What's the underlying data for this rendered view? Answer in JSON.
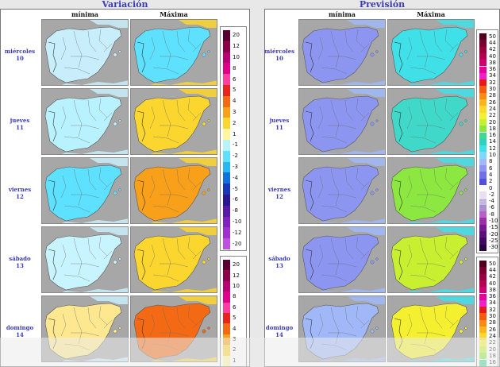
{
  "variacion": {
    "title": "Variación",
    "col_min": "mínima",
    "col_max": "Máxima"
  },
  "prevision": {
    "title": "Previsión",
    "col_min": "mínima",
    "col_max": "Máxima"
  },
  "days": [
    {
      "name": "miércoles",
      "num": "10"
    },
    {
      "name": "jueves",
      "num": "11"
    },
    {
      "name": "viernes",
      "num": "12"
    },
    {
      "name": "sábado",
      "num": "13"
    },
    {
      "name": "domingo",
      "num": "14"
    }
  ],
  "variation_legend": [
    {
      "label": "20",
      "color": "#5a0030"
    },
    {
      "label": "12",
      "color": "#8b0048"
    },
    {
      "label": "10",
      "color": "#b80070"
    },
    {
      "label": "8",
      "color": "#e0008a"
    },
    {
      "label": "6",
      "color": "#ff3fa0"
    },
    {
      "label": "5",
      "color": "#e8241c"
    },
    {
      "label": "4",
      "color": "#f46a14"
    },
    {
      "label": "3",
      "color": "#f9a01a"
    },
    {
      "label": "2",
      "color": "#fbd62e"
    },
    {
      "label": "1",
      "color": "#fff7a0"
    },
    {
      "label": "-1",
      "color": "#b8f2ff"
    },
    {
      "label": "-2",
      "color": "#5ee0ff"
    },
    {
      "label": "-3",
      "color": "#28b8f0"
    },
    {
      "label": "-4",
      "color": "#1070e0"
    },
    {
      "label": "-5",
      "color": "#1838b8"
    },
    {
      "label": "-6",
      "color": "#2a1890"
    },
    {
      "label": "-8",
      "color": "#5a1aa8"
    },
    {
      "label": "-10",
      "color": "#8022c0"
    },
    {
      "label": "-12",
      "color": "#a030d0"
    },
    {
      "label": "-20",
      "color": "#c050e0"
    }
  ],
  "variation_legend_2": [
    {
      "label": "20",
      "color": "#5a0030"
    },
    {
      "label": "12",
      "color": "#8b0048"
    },
    {
      "label": "10",
      "color": "#b80070"
    },
    {
      "label": "8",
      "color": "#e0008a"
    },
    {
      "label": "6",
      "color": "#ff3fa0"
    },
    {
      "label": "5",
      "color": "#e8241c"
    },
    {
      "label": "4",
      "color": "#f46a14"
    },
    {
      "label": "3",
      "color": "#f9a01a"
    },
    {
      "label": "2",
      "color": "#fbd62e"
    },
    {
      "label": "1",
      "color": "#fff7a0"
    }
  ],
  "forecast_legend": [
    {
      "label": "50",
      "color": "#50001e"
    },
    {
      "label": "44",
      "color": "#7a0030"
    },
    {
      "label": "42",
      "color": "#9a0040"
    },
    {
      "label": "40",
      "color": "#b80050"
    },
    {
      "label": "38",
      "color": "#d00070"
    },
    {
      "label": "36",
      "color": "#e6009a"
    },
    {
      "label": "34",
      "color": "#f020c8"
    },
    {
      "label": "32",
      "color": "#e81818"
    },
    {
      "label": "30",
      "color": "#f45a10"
    },
    {
      "label": "28",
      "color": "#f88c12"
    },
    {
      "label": "26",
      "color": "#fbb41c"
    },
    {
      "label": "24",
      "color": "#fbd82a"
    },
    {
      "label": "22",
      "color": "#f4f030"
    },
    {
      "label": "20",
      "color": "#c8f030"
    },
    {
      "label": "18",
      "color": "#8ce840"
    },
    {
      "label": "16",
      "color": "#40d890"
    },
    {
      "label": "14",
      "color": "#30d0c0"
    },
    {
      "label": "12",
      "color": "#40e0e8"
    },
    {
      "label": "10",
      "color": "#80d8f8"
    },
    {
      "label": "8",
      "color": "#a0b8f8"
    },
    {
      "label": "6",
      "color": "#8c96f0"
    },
    {
      "label": "4",
      "color": "#7070e8"
    },
    {
      "label": "2",
      "color": "#5050d8"
    },
    {
      "label": "0",
      "color": "#ffffff"
    },
    {
      "label": "-2",
      "color": "#e8e0f0"
    },
    {
      "label": "-4",
      "color": "#c8b8e0"
    },
    {
      "label": "-6",
      "color": "#a890d0"
    },
    {
      "label": "-8",
      "color": "#b860c8"
    },
    {
      "label": "-10",
      "color": "#9a30a8"
    },
    {
      "label": "-15",
      "color": "#7a1890"
    },
    {
      "label": "-20",
      "color": "#5a1078"
    },
    {
      "label": "-25",
      "color": "#400860"
    },
    {
      "label": "-30",
      "color": "#2a0440"
    }
  ],
  "forecast_legend_2": [
    {
      "label": "50",
      "color": "#50001e"
    },
    {
      "label": "44",
      "color": "#7a0030"
    },
    {
      "label": "42",
      "color": "#9a0040"
    },
    {
      "label": "40",
      "color": "#b80050"
    },
    {
      "label": "38",
      "color": "#d00070"
    },
    {
      "label": "36",
      "color": "#e6009a"
    },
    {
      "label": "34",
      "color": "#f020c8"
    },
    {
      "label": "32",
      "color": "#e81818"
    },
    {
      "label": "30",
      "color": "#f45a10"
    },
    {
      "label": "28",
      "color": "#f88c12"
    },
    {
      "label": "26",
      "color": "#fbb41c"
    },
    {
      "label": "24",
      "color": "#fbd82a"
    },
    {
      "label": "22",
      "color": "#f4f030"
    },
    {
      "label": "20",
      "color": "#c8f030"
    },
    {
      "label": "18",
      "color": "#8ce840"
    },
    {
      "label": "16",
      "color": "#40d890"
    }
  ],
  "map_fills": {
    "var_min": [
      "#c8eefc",
      "#b8f2ff",
      "#5ee0ff",
      "#c8f4ff",
      "#fde890"
    ],
    "var_max": [
      "#5ee0ff",
      "#fbd62e",
      "#f9a01a",
      "#fbd62e",
      "#f46a14"
    ],
    "prev_min": [
      "#8c96f0",
      "#8c96f0",
      "#8c96f0",
      "#8c96f0",
      "#a0b8f8"
    ],
    "prev_max": [
      "#40e0e8",
      "#40d8c8",
      "#8ce840",
      "#c8f030",
      "#f4f030"
    ]
  }
}
